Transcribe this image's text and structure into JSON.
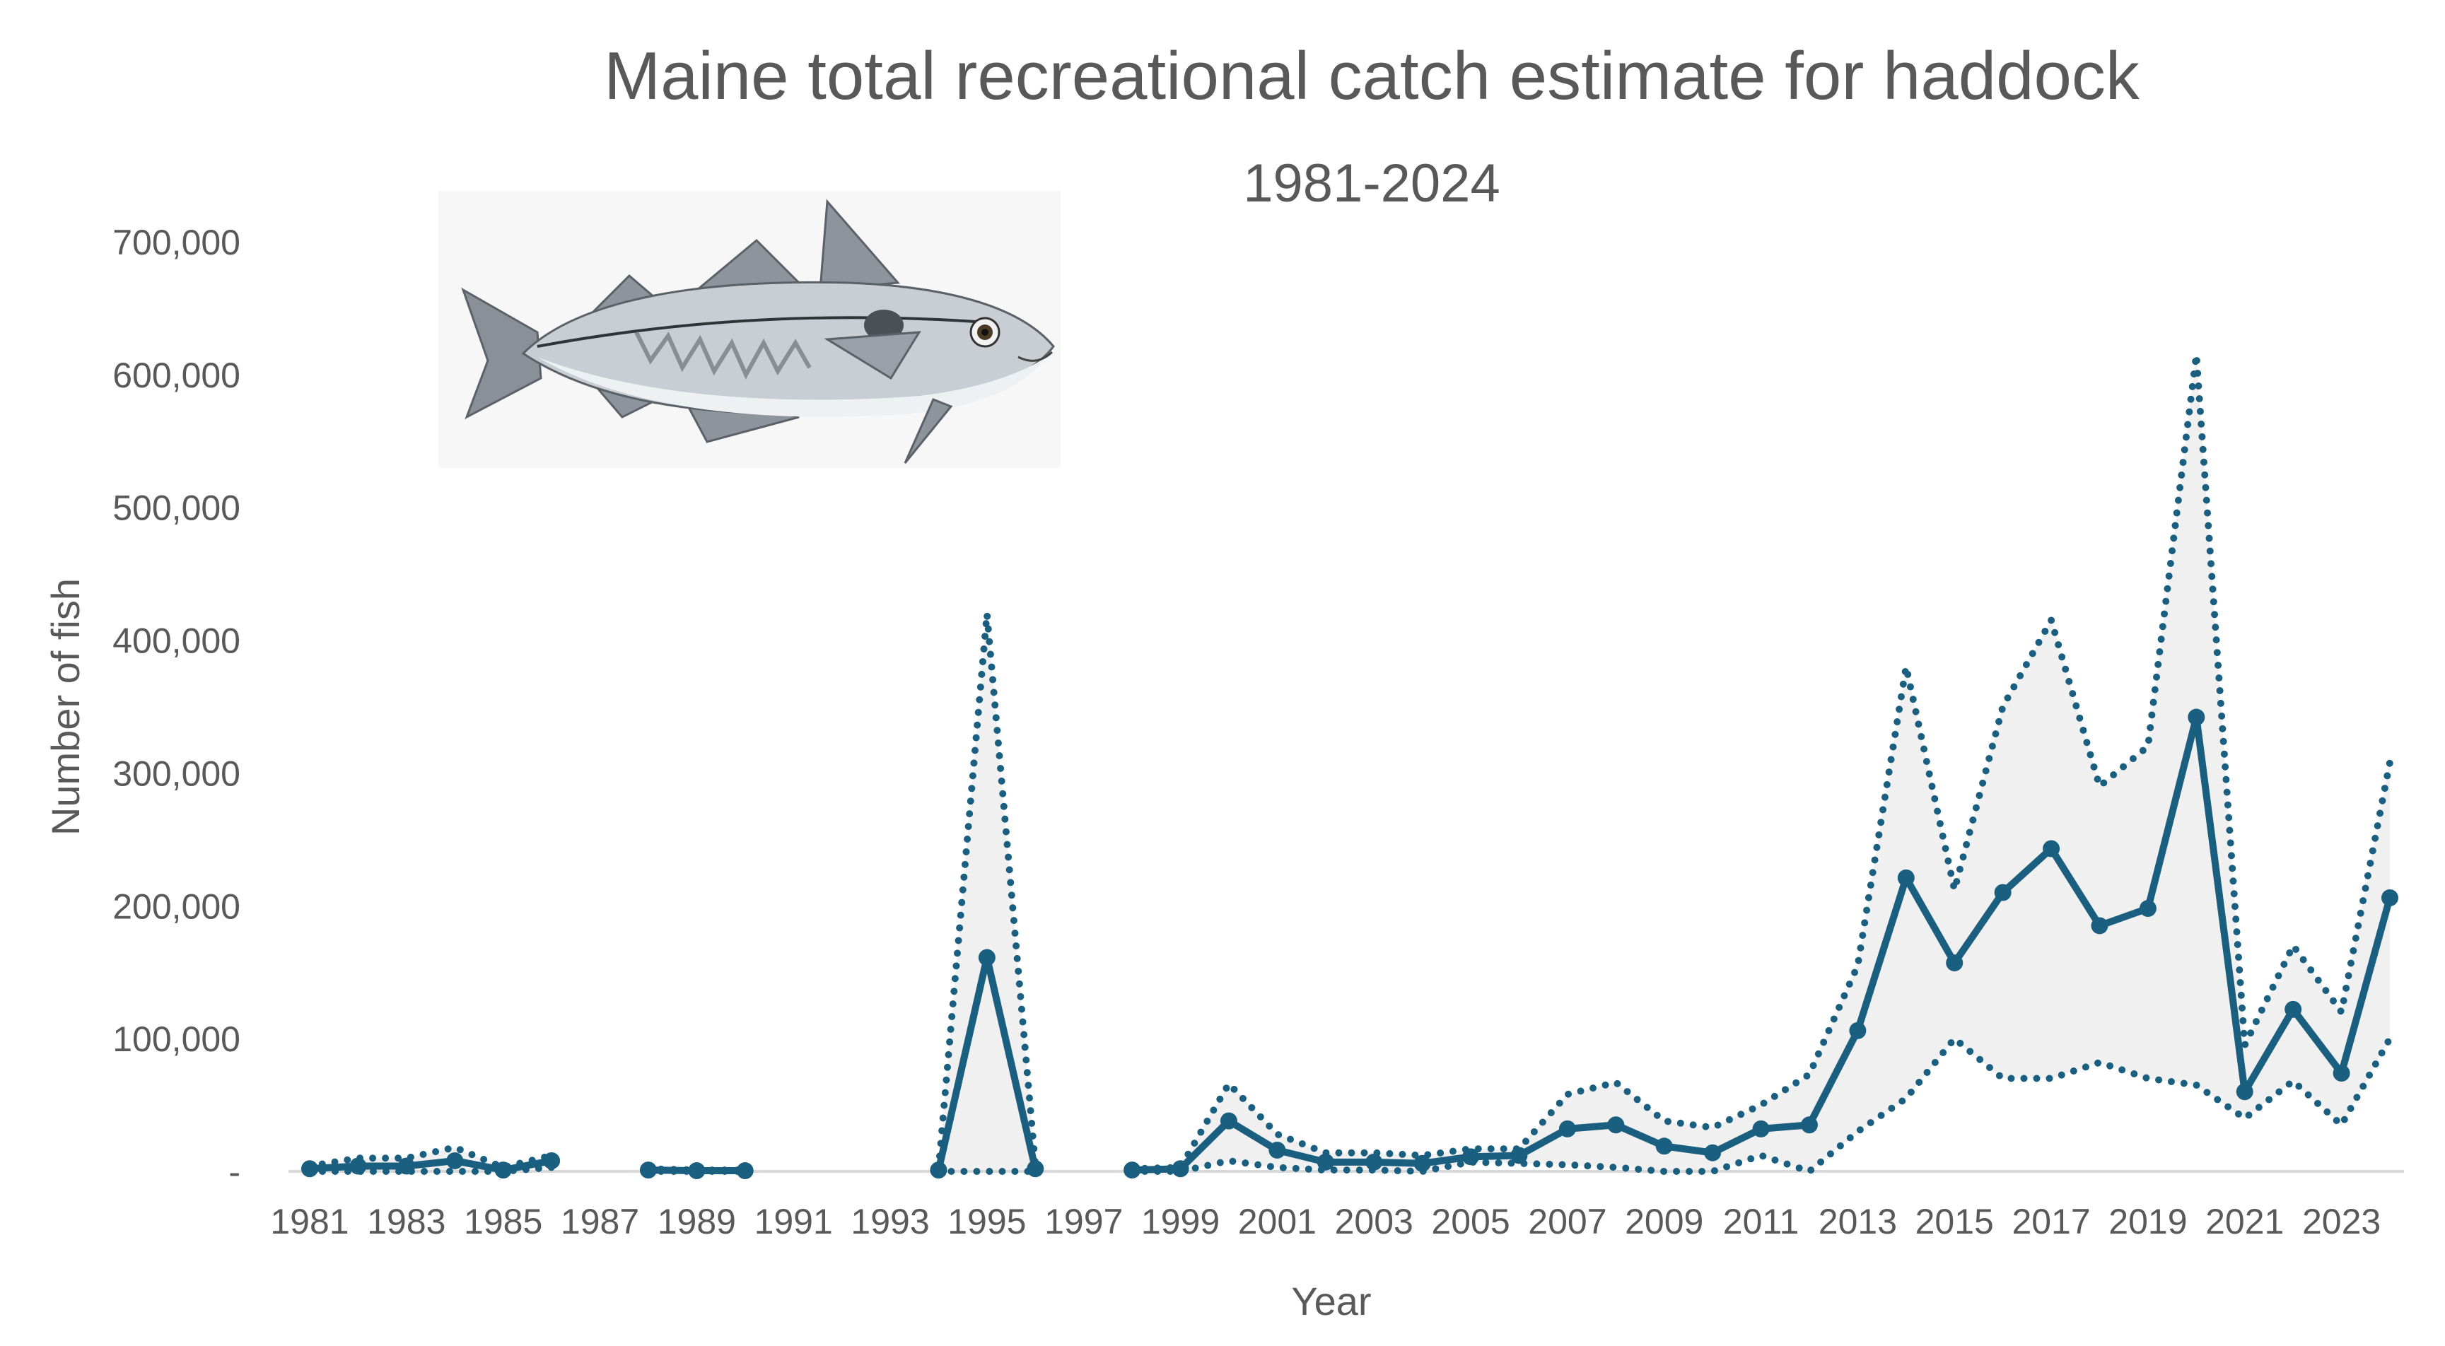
{
  "chart_data": {
    "type": "line",
    "title": "Maine total recreational catch estimate for haddock",
    "subtitle": "1981-2024",
    "xlabel": "Year",
    "ylabel": "Number of fish",
    "ylim": [
      0,
      700000
    ],
    "y_ticks": [
      0,
      100000,
      200000,
      300000,
      400000,
      500000,
      600000,
      700000
    ],
    "y_tick_labels": [
      "-",
      "100,000",
      "200,000",
      "300,000",
      "400,000",
      "500,000",
      "600,000",
      "700,000"
    ],
    "x_range": [
      1981,
      2024
    ],
    "x_tick_labels": [
      "1981",
      "1983",
      "1985",
      "1987",
      "1989",
      "1991",
      "1993",
      "1995",
      "1997",
      "1999",
      "2001",
      "2003",
      "2005",
      "2007",
      "2009",
      "2011",
      "2013",
      "2015",
      "2017",
      "2019",
      "2021",
      "2023"
    ],
    "grid": false,
    "legend": "none",
    "colors": {
      "line": "#1a5e80",
      "band": "#f0f0f0",
      "axis_text": "#595959",
      "axis_line": "#d9d9d9"
    },
    "image": {
      "description": "haddock illustration",
      "icon": "haddock-fish-icon"
    },
    "years": [
      1981,
      1982,
      1983,
      1984,
      1985,
      1986,
      1987,
      1988,
      1989,
      1990,
      1991,
      1992,
      1993,
      1994,
      1995,
      1996,
      1997,
      1998,
      1999,
      2000,
      2001,
      2002,
      2003,
      2004,
      2005,
      2006,
      2007,
      2008,
      2009,
      2010,
      2011,
      2012,
      2013,
      2014,
      2015,
      2016,
      2017,
      2018,
      2019,
      2020,
      2021,
      2022,
      2023,
      2024
    ],
    "series": [
      {
        "role": "estimate",
        "values": [
          2000,
          4000,
          4000,
          8000,
          1000,
          8000,
          null,
          1000,
          500,
          500,
          null,
          null,
          null,
          1000,
          161000,
          2000,
          null,
          1000,
          2000,
          38000,
          16000,
          7000,
          7000,
          6000,
          11000,
          12000,
          32000,
          35000,
          19000,
          14000,
          32000,
          35000,
          106000,
          221000,
          157000,
          210000,
          243000,
          185000,
          198000,
          342000,
          60000,
          122000,
          74000,
          206000
        ]
      },
      {
        "role": "upper bound",
        "values": [
          4000,
          10000,
          10000,
          18000,
          3000,
          12000,
          null,
          2000,
          1000,
          1000,
          null,
          null,
          null,
          2000,
          420000,
          5000,
          null,
          2000,
          3000,
          66000,
          28000,
          14000,
          14000,
          12000,
          17000,
          17000,
          58000,
          67000,
          38000,
          33000,
          50000,
          73000,
          155000,
          380000,
          212000,
          350000,
          415000,
          290000,
          320000,
          615000,
          95000,
          170000,
          120000,
          308000
        ]
      },
      {
        "role": "lower bound",
        "values": [
          0,
          0,
          0,
          0,
          0,
          3000,
          null,
          0,
          0,
          0,
          null,
          null,
          null,
          0,
          0,
          0,
          null,
          0,
          0,
          8000,
          3000,
          1000,
          1000,
          0,
          7000,
          6000,
          5000,
          3000,
          0,
          0,
          12000,
          0,
          30000,
          55000,
          100000,
          70000,
          70000,
          82000,
          70000,
          65000,
          40000,
          68000,
          35000,
          100000
        ]
      }
    ]
  }
}
